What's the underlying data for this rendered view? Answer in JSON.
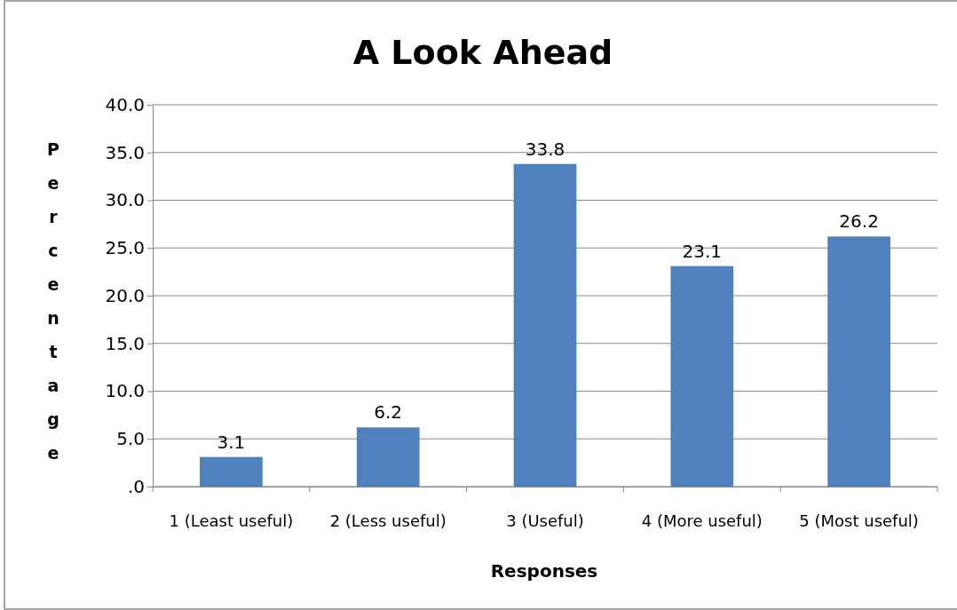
{
  "chart_data": {
    "type": "bar",
    "title": "A Look Ahead",
    "xlabel": "Responses",
    "ylabel": "Percentage",
    "categories": [
      "1 (Least useful)",
      "2 (Less useful)",
      "3 (Useful)",
      "4 (More useful)",
      "5 (Most useful)"
    ],
    "values": [
      3.1,
      6.2,
      33.8,
      23.1,
      26.2
    ],
    "color": "#4f81bd",
    "ylim": [
      0,
      40
    ],
    "yticks": [
      {
        "value": 0,
        "label": ".0"
      },
      {
        "value": 5,
        "label": "5.0"
      },
      {
        "value": 10,
        "label": "10.0"
      },
      {
        "value": 15,
        "label": "15.0"
      },
      {
        "value": 20,
        "label": "20.0"
      },
      {
        "value": 25,
        "label": "25.0"
      },
      {
        "value": 30,
        "label": "30.0"
      },
      {
        "value": 35,
        "label": "35.0"
      },
      {
        "value": 40,
        "label": "40.0"
      }
    ],
    "grid": "y",
    "data_labels": true
  }
}
